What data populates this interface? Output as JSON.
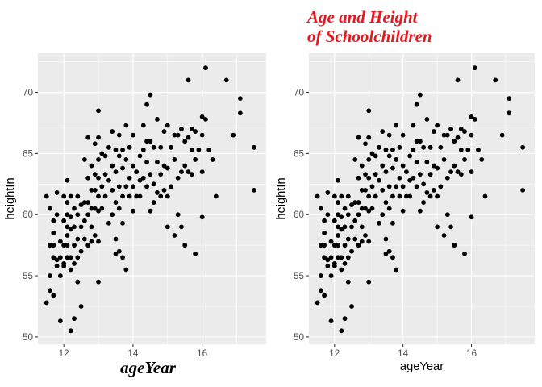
{
  "styles": {
    "accent_color": "#E8171E",
    "point_color": "#000000",
    "panel_background": "#EBEBEB",
    "grid_color": "#FFFFFF"
  },
  "chart_data": [
    {
      "type": "scatter",
      "title": "",
      "xlabel": "ageYear",
      "ylabel": "heightIn",
      "xlabel_style": "red-bold-italic",
      "xlim": [
        11.25,
        17.85
      ],
      "ylim": [
        49.4,
        73.2
      ],
      "xticks": [
        12,
        14,
        16
      ],
      "yticks": [
        50,
        55,
        60,
        65,
        70
      ],
      "grid": true,
      "points": [
        [
          11.5,
          52.8
        ],
        [
          11.6,
          53.8
        ],
        [
          11.7,
          53.4
        ],
        [
          11.6,
          55.0
        ],
        [
          11.6,
          57.5
        ],
        [
          11.5,
          61.5
        ],
        [
          11.6,
          60.5
        ],
        [
          11.7,
          59.5
        ],
        [
          11.7,
          58.5
        ],
        [
          11.8,
          61.8
        ],
        [
          11.8,
          60.0
        ],
        [
          11.7,
          57.5
        ],
        [
          11.8,
          56.3
        ],
        [
          11.7,
          56.5
        ],
        [
          11.8,
          55.8
        ],
        [
          11.9,
          57.8
        ],
        [
          11.9,
          56.5
        ],
        [
          11.9,
          55.0
        ],
        [
          11.9,
          51.3
        ],
        [
          12.0,
          61.5
        ],
        [
          12.0,
          59.5
        ],
        [
          12.0,
          57.5
        ],
        [
          12.0,
          56.0
        ],
        [
          12.0,
          55.8
        ],
        [
          12.1,
          62.8
        ],
        [
          12.1,
          61.0
        ],
        [
          12.1,
          60.0
        ],
        [
          12.1,
          59.0
        ],
        [
          12.1,
          58.3
        ],
        [
          12.1,
          57.5
        ],
        [
          12.1,
          56.5
        ],
        [
          12.2,
          61.5
        ],
        [
          12.2,
          59.8
        ],
        [
          12.2,
          58.8
        ],
        [
          12.2,
          56.5
        ],
        [
          12.2,
          55.5
        ],
        [
          12.2,
          50.5
        ],
        [
          12.3,
          60.5
        ],
        [
          12.3,
          59.0
        ],
        [
          12.3,
          57.5
        ],
        [
          12.3,
          56.0
        ],
        [
          12.3,
          51.5
        ],
        [
          12.4,
          61.5
        ],
        [
          12.4,
          60.0
        ],
        [
          12.4,
          58.0
        ],
        [
          12.4,
          56.5
        ],
        [
          12.4,
          54.5
        ],
        [
          12.5,
          60.8
        ],
        [
          12.5,
          59.0
        ],
        [
          12.5,
          57.0
        ],
        [
          12.5,
          52.5
        ],
        [
          12.6,
          64.5
        ],
        [
          12.6,
          61.0
        ],
        [
          12.6,
          59.5
        ],
        [
          12.6,
          58.0
        ],
        [
          12.7,
          66.3
        ],
        [
          12.7,
          63.0
        ],
        [
          12.7,
          61.0
        ],
        [
          12.7,
          60.0
        ],
        [
          12.7,
          57.5
        ],
        [
          12.8,
          64.0
        ],
        [
          12.8,
          62.0
        ],
        [
          12.8,
          60.5
        ],
        [
          12.8,
          59.0
        ],
        [
          12.8,
          57.8
        ],
        [
          12.9,
          65.8
        ],
        [
          12.9,
          63.3
        ],
        [
          12.9,
          62.0
        ],
        [
          12.9,
          60.5
        ],
        [
          12.9,
          58.3
        ],
        [
          13.0,
          68.5
        ],
        [
          13.0,
          66.3
        ],
        [
          13.0,
          64.5
        ],
        [
          13.0,
          63.0
        ],
        [
          13.0,
          61.5
        ],
        [
          13.0,
          60.3
        ],
        [
          13.0,
          57.8
        ],
        [
          13.0,
          54.5
        ],
        [
          13.1,
          65.0
        ],
        [
          13.1,
          62.3
        ],
        [
          13.1,
          60.5
        ],
        [
          13.2,
          64.8
        ],
        [
          13.2,
          63.3
        ],
        [
          13.2,
          61.5
        ],
        [
          13.3,
          65.5
        ],
        [
          13.3,
          62.8
        ],
        [
          13.3,
          59.3
        ],
        [
          13.4,
          66.8
        ],
        [
          13.4,
          64.0
        ],
        [
          13.4,
          62.0
        ],
        [
          13.4,
          60.0
        ],
        [
          13.5,
          65.3
        ],
        [
          13.5,
          63.5
        ],
        [
          13.5,
          61.0
        ],
        [
          13.5,
          58.0
        ],
        [
          13.5,
          56.8
        ],
        [
          13.6,
          66.5
        ],
        [
          13.6,
          64.8
        ],
        [
          13.6,
          62.3
        ],
        [
          13.6,
          60.5
        ],
        [
          13.6,
          57.0
        ],
        [
          13.7,
          65.3
        ],
        [
          13.7,
          63.8
        ],
        [
          13.7,
          61.5
        ],
        [
          13.7,
          59.3
        ],
        [
          13.7,
          56.5
        ],
        [
          13.8,
          67.3
        ],
        [
          13.8,
          64.5
        ],
        [
          13.8,
          62.3
        ],
        [
          13.8,
          55.5
        ],
        [
          13.9,
          65.5
        ],
        [
          13.9,
          63.0
        ],
        [
          13.9,
          61.5
        ],
        [
          14.0,
          66.5
        ],
        [
          14.0,
          64.0
        ],
        [
          14.0,
          62.3
        ],
        [
          14.0,
          60.3
        ],
        [
          14.1,
          63.5
        ],
        [
          14.1,
          61.5
        ],
        [
          14.2,
          64.8
        ],
        [
          14.2,
          62.8
        ],
        [
          14.2,
          61.5
        ],
        [
          14.3,
          67.3
        ],
        [
          14.3,
          65.3
        ],
        [
          14.3,
          63.0
        ],
        [
          14.4,
          69.0
        ],
        [
          14.4,
          66.0
        ],
        [
          14.4,
          64.3
        ],
        [
          14.4,
          62.3
        ],
        [
          14.5,
          69.8
        ],
        [
          14.5,
          66.0
        ],
        [
          14.5,
          63.3
        ],
        [
          14.5,
          60.3
        ],
        [
          14.6,
          65.5
        ],
        [
          14.6,
          62.5
        ],
        [
          14.6,
          61.0
        ],
        [
          14.7,
          67.8
        ],
        [
          14.7,
          64.3
        ],
        [
          14.7,
          61.8
        ],
        [
          14.8,
          65.5
        ],
        [
          14.8,
          63.3
        ],
        [
          14.8,
          61.5
        ],
        [
          14.9,
          66.8
        ],
        [
          14.9,
          64.0
        ],
        [
          14.9,
          62.0
        ],
        [
          15.0,
          67.3
        ],
        [
          15.0,
          63.8
        ],
        [
          15.0,
          61.5
        ],
        [
          15.0,
          59.0
        ],
        [
          15.1,
          65.5
        ],
        [
          15.1,
          62.3
        ],
        [
          15.2,
          66.5
        ],
        [
          15.2,
          64.5
        ],
        [
          15.2,
          58.3
        ],
        [
          15.3,
          66.5
        ],
        [
          15.3,
          63.0
        ],
        [
          15.3,
          60.0
        ],
        [
          15.4,
          67.0
        ],
        [
          15.4,
          63.5
        ],
        [
          15.4,
          59.0
        ],
        [
          15.5,
          66.0
        ],
        [
          15.5,
          64.0
        ],
        [
          15.5,
          57.5
        ],
        [
          15.6,
          71.0
        ],
        [
          15.6,
          66.3
        ],
        [
          15.6,
          63.5
        ],
        [
          15.7,
          67.0
        ],
        [
          15.7,
          65.3
        ],
        [
          15.7,
          63.3
        ],
        [
          15.8,
          66.8
        ],
        [
          15.8,
          64.5
        ],
        [
          15.8,
          56.8
        ],
        [
          15.9,
          65.3
        ],
        [
          16.0,
          68.0
        ],
        [
          16.0,
          66.5
        ],
        [
          16.0,
          63.5
        ],
        [
          16.0,
          59.8
        ],
        [
          16.1,
          72.0
        ],
        [
          16.1,
          67.8
        ],
        [
          16.2,
          65.3
        ],
        [
          16.3,
          64.5
        ],
        [
          16.4,
          61.5
        ],
        [
          16.7,
          71.0
        ],
        [
          16.9,
          66.5
        ],
        [
          17.1,
          69.5
        ],
        [
          17.1,
          68.3
        ],
        [
          17.5,
          65.5
        ],
        [
          17.5,
          62.0
        ]
      ]
    },
    {
      "type": "scatter",
      "title": "Age and Height\nof Schoolchildren",
      "title_lines": [
        "Age and Height",
        "of Schoolchildren"
      ],
      "title_style": "red-bold-italic",
      "xlabel": "ageYear",
      "ylabel": "heightIn",
      "xlim": [
        11.25,
        17.85
      ],
      "ylim": [
        49.4,
        73.2
      ],
      "xticks": [
        12,
        14,
        16
      ],
      "yticks": [
        50,
        55,
        60,
        65,
        70
      ],
      "grid": true,
      "points": "same as first plot"
    }
  ]
}
